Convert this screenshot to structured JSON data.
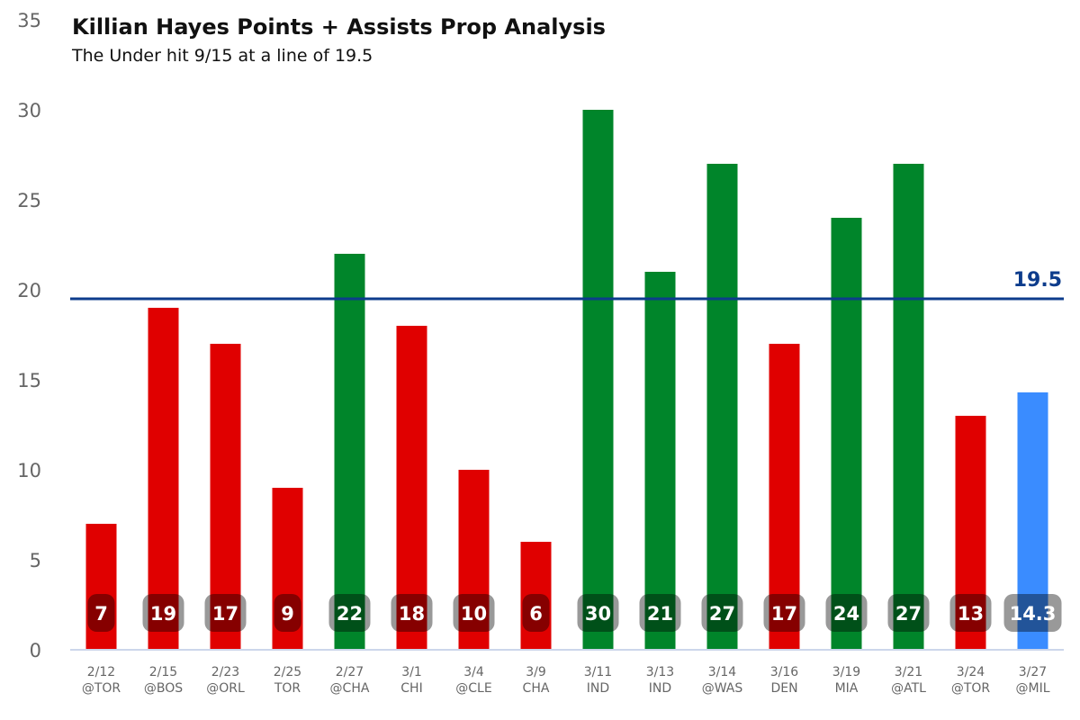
{
  "chart_data": {
    "type": "bar",
    "title": "Killian Hayes Points + Assists Prop Analysis",
    "subtitle": "The Under hit 9/15 at a line of 19.5",
    "xlabel": "",
    "ylabel": "",
    "ylim": [
      0,
      35
    ],
    "yticks": [
      0,
      5,
      10,
      15,
      20,
      25,
      30,
      35
    ],
    "grid": false,
    "line": {
      "value": 19.5,
      "label": "19.5",
      "color": "#0d3c8c"
    },
    "colors": {
      "under": "#e00000",
      "over": "#00852a",
      "average": "#3a8cff"
    },
    "bars": [
      {
        "date": "2/12",
        "opponent": "@TOR",
        "value": 7,
        "label": "7",
        "result": "under"
      },
      {
        "date": "2/15",
        "opponent": "@BOS",
        "value": 19,
        "label": "19",
        "result": "under"
      },
      {
        "date": "2/23",
        "opponent": "@ORL",
        "value": 17,
        "label": "17",
        "result": "under"
      },
      {
        "date": "2/25",
        "opponent": "TOR",
        "value": 9,
        "label": "9",
        "result": "under"
      },
      {
        "date": "2/27",
        "opponent": "@CHA",
        "value": 22,
        "label": "22",
        "result": "over"
      },
      {
        "date": "3/1",
        "opponent": "CHI",
        "value": 18,
        "label": "18",
        "result": "under"
      },
      {
        "date": "3/4",
        "opponent": "@CLE",
        "value": 10,
        "label": "10",
        "result": "under"
      },
      {
        "date": "3/9",
        "opponent": "CHA",
        "value": 6,
        "label": "6",
        "result": "under"
      },
      {
        "date": "3/11",
        "opponent": "IND",
        "value": 30,
        "label": "30",
        "result": "over"
      },
      {
        "date": "3/13",
        "opponent": "IND",
        "value": 21,
        "label": "21",
        "result": "over"
      },
      {
        "date": "3/14",
        "opponent": "@WAS",
        "value": 27,
        "label": "27",
        "result": "over"
      },
      {
        "date": "3/16",
        "opponent": "DEN",
        "value": 17,
        "label": "17",
        "result": "under"
      },
      {
        "date": "3/19",
        "opponent": "MIA",
        "value": 24,
        "label": "24",
        "result": "over"
      },
      {
        "date": "3/21",
        "opponent": "@ATL",
        "value": 27,
        "label": "27",
        "result": "over"
      },
      {
        "date": "3/24",
        "opponent": "@TOR",
        "value": 13,
        "label": "13",
        "result": "under"
      },
      {
        "date": "3/27",
        "opponent": "@MIL",
        "value": 14.3,
        "label": "14.3",
        "result": "average"
      }
    ]
  }
}
